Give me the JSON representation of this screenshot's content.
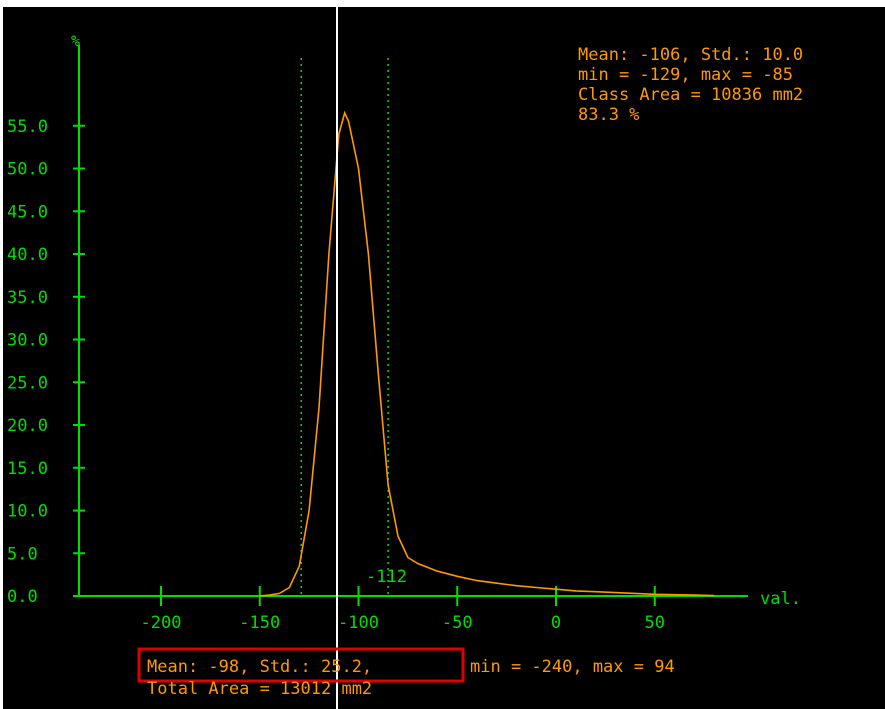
{
  "colors": {
    "background": "#000000",
    "frame": "#ffffff",
    "axis": "#00dd00",
    "curve": "#ff9900",
    "stats_text": "#ff9900",
    "highlight_box": "#e00000",
    "marker_line": "#ffffff"
  },
  "chart_data": {
    "type": "line",
    "y_unit_label": "%",
    "x_unit_label": "val.",
    "xlim": [
      -240,
      94
    ],
    "ylim": [
      0,
      55
    ],
    "x_ticks": [
      -200,
      -150,
      -100,
      -50,
      0,
      50
    ],
    "x_tick_labels": [
      "-200",
      "-150",
      "-100",
      "-50",
      "0",
      "50"
    ],
    "y_ticks": [
      0,
      5,
      10,
      15,
      20,
      25,
      30,
      35,
      40,
      45,
      50,
      55
    ],
    "y_tick_labels": [
      "0.0",
      "5.0",
      "10.0",
      "15.0",
      "20.0",
      "25.0",
      "30.0",
      "35.0",
      "40.0",
      "45.0",
      "50.0",
      "55.0"
    ],
    "series": [
      {
        "x": [
          -150,
          -145,
          -140,
          -135,
          -130,
          -125,
          -120,
          -115,
          -110,
          -107,
          -105,
          -100,
          -95,
          -90,
          -85,
          -80,
          -75,
          -70,
          -60,
          -50,
          -40,
          -30,
          -20,
          -10,
          0,
          10,
          20,
          30,
          40,
          50,
          60,
          70,
          80
        ],
        "y": [
          0.0,
          0.1,
          0.3,
          1.0,
          3.5,
          10.0,
          22.0,
          40.0,
          54.0,
          56.5,
          55.5,
          50.0,
          40.0,
          26.0,
          13.0,
          7.0,
          4.5,
          3.8,
          2.9,
          2.3,
          1.8,
          1.5,
          1.2,
          1.0,
          0.8,
          0.6,
          0.5,
          0.4,
          0.3,
          0.2,
          0.15,
          0.1,
          0.05
        ]
      }
    ],
    "threshold_lines": [
      -129,
      -85
    ],
    "marker_line_x": -106,
    "annotations": {
      "marker_value": "-112",
      "class_stats": [
        "Mean: -106, Std.: 10.0",
        "min = -129, max = -85",
        "Class Area = 10836 mm2",
        "83.3 %"
      ],
      "total_stats_highlight": "Mean: -98, Std.: 25.2,",
      "total_stats_rest": "min = -240, max = 94",
      "total_area": "Total Area = 13012 mm2"
    }
  }
}
